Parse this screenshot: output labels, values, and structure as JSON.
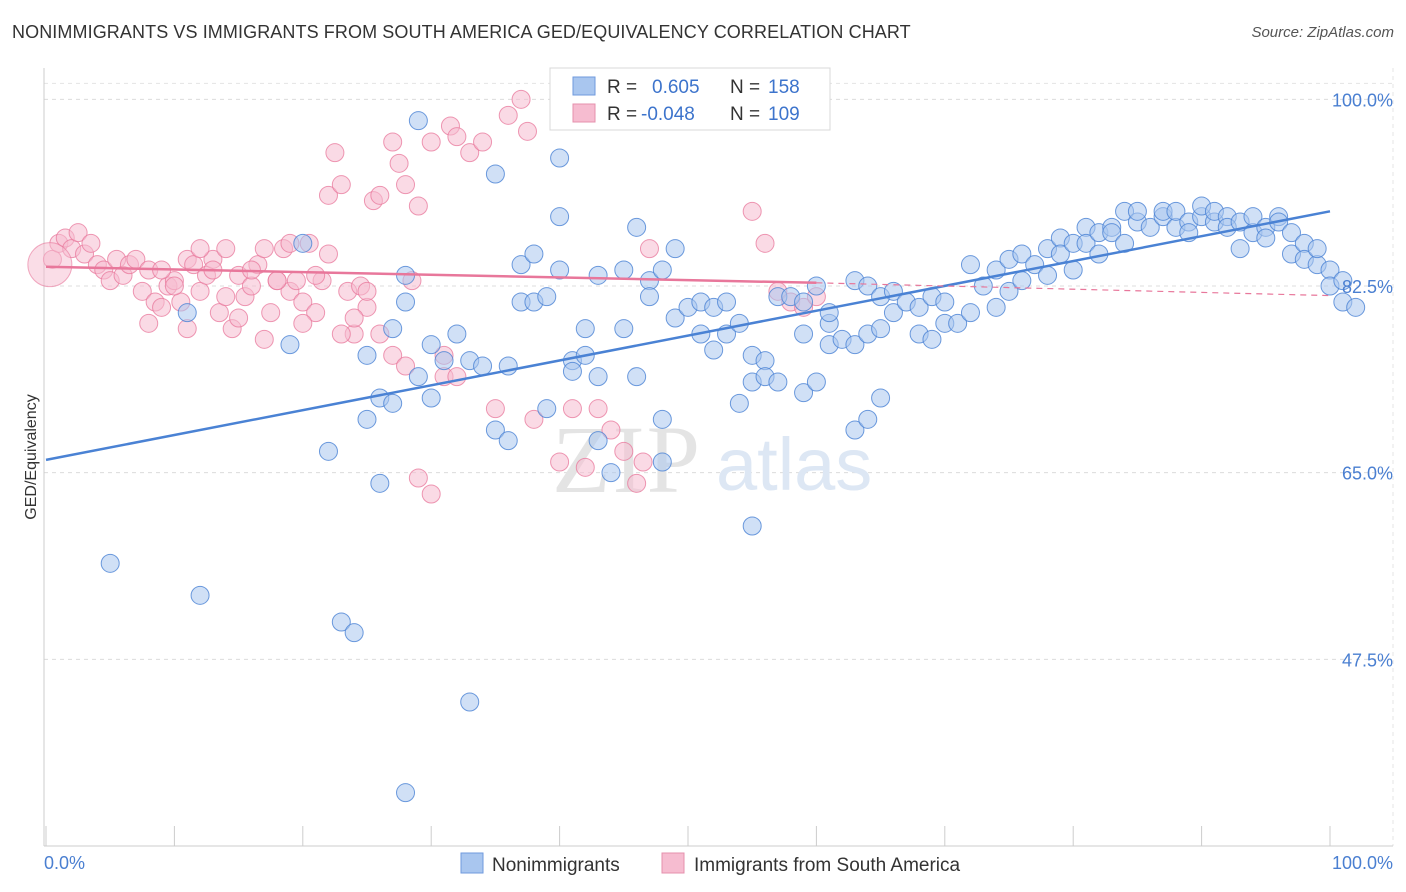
{
  "header": {
    "title": "NONIMMIGRANTS VS IMMIGRANTS FROM SOUTH AMERICA GED/EQUIVALENCY CORRELATION CHART",
    "source": "Source: ZipAtlas.com"
  },
  "watermark": {
    "zip": "ZIP",
    "atlas": "atlas"
  },
  "colors": {
    "blue": "#4a82d4",
    "blue_fill": "#a9c6ef",
    "pink": "#e8779b",
    "pink_fill": "#f6bcd0",
    "tick_text": "#4a7fd1"
  },
  "legend": {
    "rows": [
      {
        "r_label": "R =",
        "r_value": "0.605",
        "n_label": "N =",
        "n_value": "158"
      },
      {
        "r_label": "R =",
        "r_value": "-0.048",
        "n_label": "N =",
        "n_value": "109"
      }
    ]
  },
  "bottom_legend": [
    "Nonimmigrants",
    "Immigrants from South America"
  ],
  "chart_data": {
    "type": "scatter",
    "xlabel": "",
    "ylabel": "GED/Equivalency",
    "xlim": [
      0,
      100
    ],
    "ylim": [
      30,
      102
    ],
    "x_tick_labels": [
      "0.0%",
      "100.0%"
    ],
    "y_ticks": [
      {
        "value": 100.0,
        "label": "100.0%"
      },
      {
        "value": 82.5,
        "label": "82.5%"
      },
      {
        "value": 65.0,
        "label": "65.0%"
      },
      {
        "value": 47.5,
        "label": "47.5%"
      }
    ],
    "grid": true,
    "series": [
      {
        "name": "Nonimmigrants",
        "color": "#4a82d4",
        "trend": {
          "x0": 0,
          "y0": 66.2,
          "x1": 100,
          "y1": 89.5
        },
        "points": [
          [
            5,
            56.5
          ],
          [
            12,
            53.5
          ],
          [
            11,
            80
          ],
          [
            19,
            77
          ],
          [
            20,
            86.5
          ],
          [
            22,
            67
          ],
          [
            23,
            51
          ],
          [
            24,
            50
          ],
          [
            25,
            76
          ],
          [
            25,
            70
          ],
          [
            26,
            72
          ],
          [
            26,
            64
          ],
          [
            27,
            71.5
          ],
          [
            27,
            78.5
          ],
          [
            28,
            35
          ],
          [
            28,
            81
          ],
          [
            28,
            83.5
          ],
          [
            29,
            98
          ],
          [
            29,
            74
          ],
          [
            30,
            72
          ],
          [
            31,
            75.5
          ],
          [
            32,
            78
          ],
          [
            33,
            75.5
          ],
          [
            33,
            43.5
          ],
          [
            34,
            75
          ],
          [
            35,
            69
          ],
          [
            35,
            93
          ],
          [
            36,
            75
          ],
          [
            37,
            81
          ],
          [
            37,
            84.5
          ],
          [
            38,
            81
          ],
          [
            38,
            85.5
          ],
          [
            39,
            81.5
          ],
          [
            39,
            71
          ],
          [
            40,
            84
          ],
          [
            40,
            89
          ],
          [
            40,
            94.5
          ],
          [
            41,
            75.5
          ],
          [
            41,
            74.5
          ],
          [
            42,
            76
          ],
          [
            42,
            78.5
          ],
          [
            43,
            83.5
          ],
          [
            43,
            74
          ],
          [
            44,
            65
          ],
          [
            45,
            84
          ],
          [
            45,
            78.5
          ],
          [
            46,
            74
          ],
          [
            46,
            88
          ],
          [
            47,
            83
          ],
          [
            47,
            81.5
          ],
          [
            48,
            70
          ],
          [
            48,
            84
          ],
          [
            49,
            86
          ],
          [
            49,
            79.5
          ],
          [
            50,
            80.5
          ],
          [
            51,
            78
          ],
          [
            51,
            81
          ],
          [
            52,
            76.5
          ],
          [
            52,
            80.5
          ],
          [
            53,
            78
          ],
          [
            53,
            81
          ],
          [
            54,
            79
          ],
          [
            54,
            71.5
          ],
          [
            55,
            76
          ],
          [
            55,
            73.5
          ],
          [
            56,
            75.5
          ],
          [
            56,
            74
          ],
          [
            57,
            81.5
          ],
          [
            57,
            73.5
          ],
          [
            58,
            81.5
          ],
          [
            59,
            81
          ],
          [
            59,
            72.5
          ],
          [
            59,
            78
          ],
          [
            60,
            82.5
          ],
          [
            60,
            73.5
          ],
          [
            61,
            79
          ],
          [
            61,
            80
          ],
          [
            61,
            77
          ],
          [
            62,
            77.5
          ],
          [
            63,
            83
          ],
          [
            63,
            77
          ],
          [
            64,
            82.5
          ],
          [
            64,
            78
          ],
          [
            65,
            78.5
          ],
          [
            65,
            81.5
          ],
          [
            66,
            80
          ],
          [
            66,
            82
          ],
          [
            67,
            81
          ],
          [
            68,
            78
          ],
          [
            68,
            80.5
          ],
          [
            69,
            77.5
          ],
          [
            69,
            81.5
          ],
          [
            70,
            79
          ],
          [
            70,
            81
          ],
          [
            71,
            79
          ],
          [
            72,
            80
          ],
          [
            72,
            84.5
          ],
          [
            73,
            82.5
          ],
          [
            74,
            84
          ],
          [
            74,
            80.5
          ],
          [
            75,
            85
          ],
          [
            75,
            82
          ],
          [
            76,
            83
          ],
          [
            76,
            85.5
          ],
          [
            77,
            84.5
          ],
          [
            78,
            86
          ],
          [
            78,
            83.5
          ],
          [
            79,
            87
          ],
          [
            79,
            85.5
          ],
          [
            80,
            86.5
          ],
          [
            80,
            84
          ],
          [
            81,
            88
          ],
          [
            81,
            86.5
          ],
          [
            82,
            87.5
          ],
          [
            82,
            85.5
          ],
          [
            83,
            88
          ],
          [
            83,
            87.5
          ],
          [
            84,
            89.5
          ],
          [
            84,
            86.5
          ],
          [
            85,
            88.5
          ],
          [
            85,
            89.5
          ],
          [
            86,
            88
          ],
          [
            87,
            89
          ],
          [
            87,
            89.5
          ],
          [
            88,
            88
          ],
          [
            88,
            89.5
          ],
          [
            89,
            88.5
          ],
          [
            89,
            87.5
          ],
          [
            90,
            89
          ],
          [
            90,
            90
          ],
          [
            91,
            88.5
          ],
          [
            91,
            89.5
          ],
          [
            92,
            89
          ],
          [
            92,
            88
          ],
          [
            93,
            88.5
          ],
          [
            93,
            86
          ],
          [
            94,
            87.5
          ],
          [
            94,
            89
          ],
          [
            95,
            88
          ],
          [
            95,
            87
          ],
          [
            96,
            89
          ],
          [
            96,
            88.5
          ],
          [
            97,
            87.5
          ],
          [
            97,
            85.5
          ],
          [
            98,
            86.5
          ],
          [
            98,
            85
          ],
          [
            99,
            84.5
          ],
          [
            99,
            86
          ],
          [
            100,
            84
          ],
          [
            100,
            82.5
          ],
          [
            101,
            81
          ],
          [
            101,
            83
          ],
          [
            102,
            80.5
          ],
          [
            63,
            69
          ],
          [
            64,
            70
          ],
          [
            65,
            72
          ],
          [
            48,
            66
          ],
          [
            30,
            77
          ],
          [
            36,
            68
          ],
          [
            43,
            68
          ],
          [
            55,
            60
          ]
        ]
      },
      {
        "name": "Immigrants from South America",
        "color": "#e8779b",
        "trend": {
          "x0": 0,
          "y0": 84.3,
          "x1": 60,
          "y1": 82.8,
          "dash_to_x": 100,
          "dash_to_y": 81.6
        },
        "points": [
          [
            0.5,
            85
          ],
          [
            1,
            86.5
          ],
          [
            1.5,
            87
          ],
          [
            2,
            86
          ],
          [
            2.5,
            87.5
          ],
          [
            3,
            85.5
          ],
          [
            3.5,
            86.5
          ],
          [
            4,
            84.5
          ],
          [
            4.5,
            84
          ],
          [
            5,
            83
          ],
          [
            5.5,
            85
          ],
          [
            6,
            83.5
          ],
          [
            6.5,
            84.5
          ],
          [
            7,
            85
          ],
          [
            7.5,
            82
          ],
          [
            8,
            84
          ],
          [
            8.5,
            81
          ],
          [
            9,
            80.5
          ],
          [
            9.5,
            82.5
          ],
          [
            10,
            83
          ],
          [
            10.5,
            81
          ],
          [
            11,
            85
          ],
          [
            11.5,
            84.5
          ],
          [
            12,
            82
          ],
          [
            12.5,
            83.5
          ],
          [
            13,
            85
          ],
          [
            13.5,
            80
          ],
          [
            14,
            81.5
          ],
          [
            14.5,
            78.5
          ],
          [
            15,
            83.5
          ],
          [
            15.5,
            81.5
          ],
          [
            16,
            82.5
          ],
          [
            16.5,
            84.5
          ],
          [
            17,
            86
          ],
          [
            17.5,
            80
          ],
          [
            18,
            83
          ],
          [
            18.5,
            86
          ],
          [
            19,
            82
          ],
          [
            19.5,
            83
          ],
          [
            20,
            81
          ],
          [
            20.5,
            86.5
          ],
          [
            21,
            80
          ],
          [
            21.5,
            83
          ],
          [
            22,
            91
          ],
          [
            22.5,
            95
          ],
          [
            23,
            92
          ],
          [
            23.5,
            82
          ],
          [
            24,
            78
          ],
          [
            24.5,
            82.5
          ],
          [
            25,
            80.5
          ],
          [
            25.5,
            90.5
          ],
          [
            26,
            91
          ],
          [
            27,
            96
          ],
          [
            27.5,
            94
          ],
          [
            28,
            92
          ],
          [
            28.5,
            83
          ],
          [
            29,
            90
          ],
          [
            30,
            96
          ],
          [
            31,
            74
          ],
          [
            31.5,
            97.5
          ],
          [
            32,
            96.5
          ],
          [
            33,
            95
          ],
          [
            34,
            96
          ],
          [
            35,
            71
          ],
          [
            36,
            98.5
          ],
          [
            37,
            100
          ],
          [
            37.5,
            97
          ],
          [
            38,
            70
          ],
          [
            40,
            66
          ],
          [
            41,
            71
          ],
          [
            42,
            65.5
          ],
          [
            43,
            71
          ],
          [
            44,
            69
          ],
          [
            45,
            67
          ],
          [
            46,
            64
          ],
          [
            46.5,
            66
          ],
          [
            47,
            86
          ],
          [
            55,
            89.5
          ],
          [
            56,
            86.5
          ],
          [
            57,
            82
          ],
          [
            58,
            81
          ],
          [
            59,
            80.5
          ],
          [
            60,
            81.5
          ],
          [
            8,
            79
          ],
          [
            9,
            84
          ],
          [
            10,
            82.5
          ],
          [
            11,
            78.5
          ],
          [
            12,
            86
          ],
          [
            13,
            84
          ],
          [
            14,
            86
          ],
          [
            15,
            79.5
          ],
          [
            16,
            84
          ],
          [
            17,
            77.5
          ],
          [
            18,
            83
          ],
          [
            19,
            86.5
          ],
          [
            20,
            79
          ],
          [
            21,
            83.5
          ],
          [
            22,
            85.5
          ],
          [
            23,
            78
          ],
          [
            24,
            79.5
          ],
          [
            25,
            82
          ],
          [
            26,
            78
          ],
          [
            27,
            76
          ],
          [
            28,
            75
          ],
          [
            29,
            64.5
          ],
          [
            30,
            63
          ],
          [
            31,
            76
          ],
          [
            32,
            74
          ]
        ]
      }
    ]
  }
}
